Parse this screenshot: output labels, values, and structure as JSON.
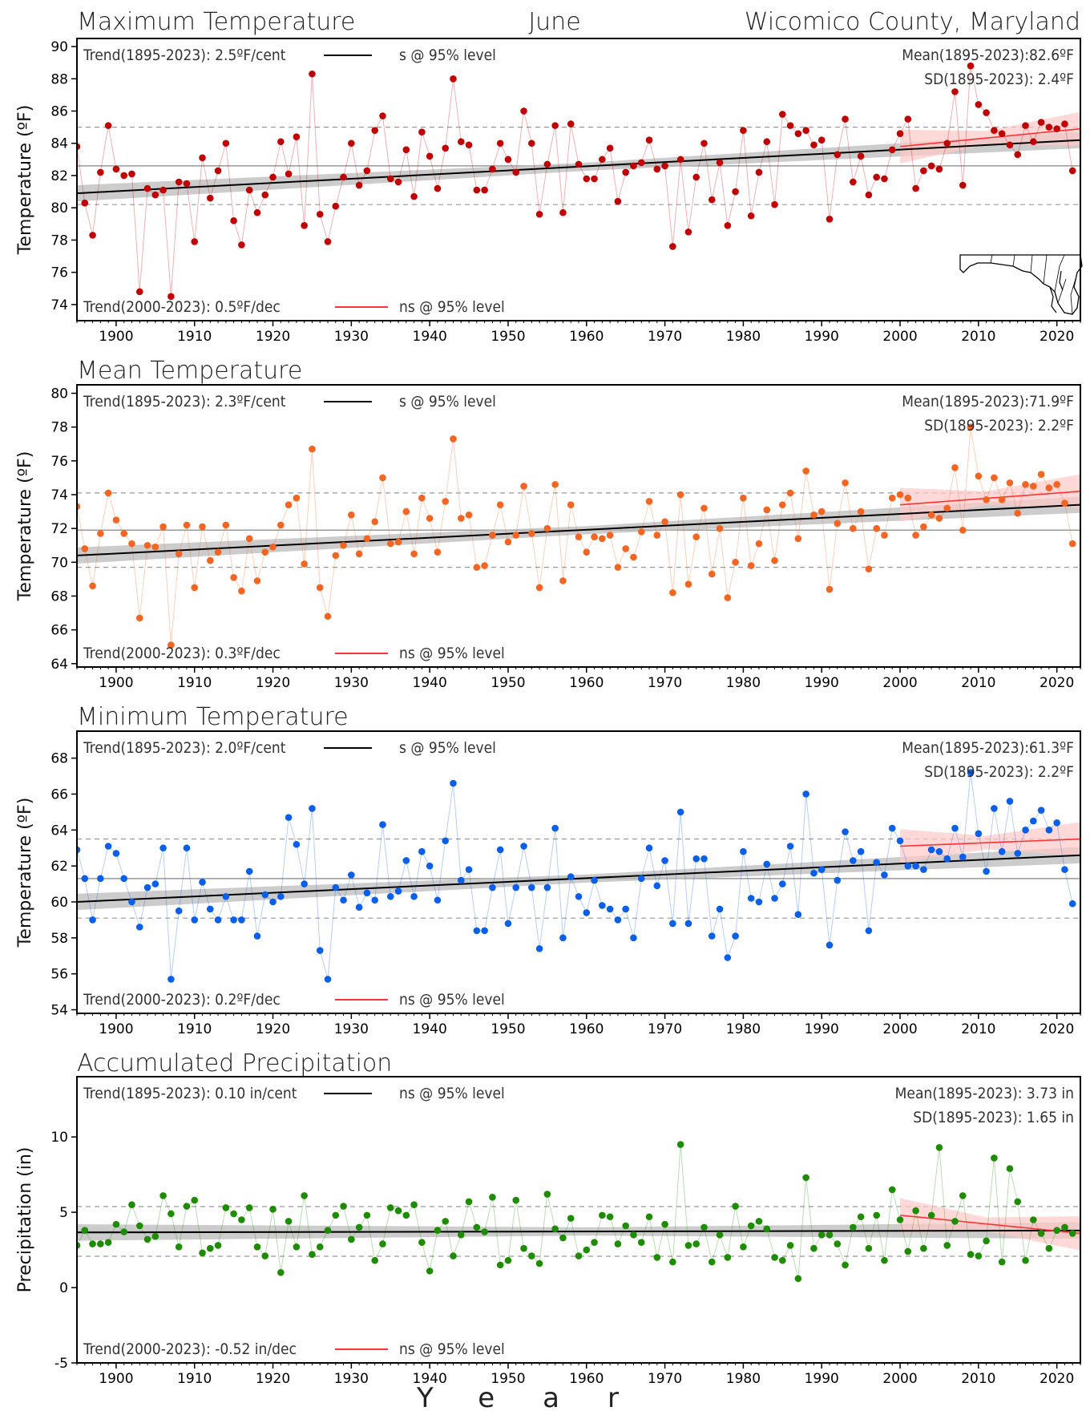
{
  "header": {
    "title_left": "Maximum Temperature",
    "title_center": "June",
    "title_right": "Wicomico County, Maryland"
  },
  "x_axis": {
    "label": "Year",
    "range": [
      1895,
      2023
    ],
    "ticks": [
      1900,
      1910,
      1920,
      1930,
      1940,
      1950,
      1960,
      1970,
      1980,
      1990,
      2000,
      2010,
      2020
    ]
  },
  "colors": {
    "max": "#c00000",
    "mean": "#f26522",
    "min": "#0a5fe8",
    "precip": "#1e8c00",
    "trend_line": "#000000",
    "recent_trend": "#ff3333",
    "band": "#bbbbbb",
    "recent_band": "#ffc8c8"
  },
  "chart_data": [
    {
      "type": "line",
      "title": "Maximum Temperature",
      "ylabel": "Temperature (ºF)",
      "ylim": [
        73,
        90.5
      ],
      "yticks": [
        74,
        76,
        78,
        80,
        82,
        84,
        86,
        88,
        90
      ],
      "trend_long_label": "Trend(1895-2023):  2.5ºF/cent",
      "trend_long_sig": "s @ 95% level",
      "trend_recent_label": "Trend(2000-2023):  0.5ºF/dec",
      "trend_recent_sig": "ns @ 95% level",
      "mean_label": "Mean(1895-2023):82.6ºF",
      "sd_label": "SD(1895-2023): 2.4ºF",
      "mean": 82.6,
      "sd": 2.4,
      "trend_long": {
        "y_start": 80.9,
        "y_end": 84.2
      },
      "trend_recent": {
        "y_start": 83.8,
        "y_end": 84.9
      },
      "start_year": 1895,
      "values": [
        83.8,
        80.3,
        78.3,
        82.2,
        85.1,
        82.4,
        82.0,
        82.1,
        74.8,
        81.2,
        80.8,
        81.1,
        74.5,
        81.6,
        81.5,
        77.9,
        83.1,
        80.6,
        82.3,
        84.0,
        79.2,
        77.7,
        81.1,
        79.7,
        80.8,
        81.9,
        84.1,
        82.1,
        84.4,
        78.9,
        88.3,
        79.6,
        77.9,
        80.1,
        81.9,
        84.0,
        81.4,
        82.3,
        84.8,
        85.7,
        81.8,
        81.6,
        83.6,
        80.7,
        84.7,
        83.2,
        81.2,
        83.7,
        88.0,
        84.1,
        83.9,
        81.1,
        81.1,
        82.4,
        84.0,
        83.0,
        82.2,
        86.0,
        84.0,
        79.6,
        82.7,
        85.1,
        79.7,
        85.2,
        82.7,
        81.8,
        81.8,
        83.0,
        83.7,
        80.4,
        82.2,
        82.6,
        82.8,
        84.2,
        82.4,
        82.6,
        77.6,
        83.0,
        78.5,
        81.9,
        84.0,
        80.5,
        82.8,
        78.9,
        81.0,
        84.8,
        79.5,
        82.2,
        84.1,
        80.2,
        85.8,
        85.1,
        84.6,
        84.8,
        83.9,
        84.2,
        79.3,
        83.3,
        85.5,
        81.6,
        83.2,
        80.8,
        81.9,
        81.8,
        83.6,
        84.6,
        85.5,
        81.2,
        82.3,
        82.6,
        82.4,
        84.0,
        87.2,
        81.4,
        88.8,
        86.4,
        85.9,
        84.8,
        84.6,
        83.9,
        83.3,
        85.1,
        84.1,
        85.3,
        85.0,
        84.9,
        85.2,
        82.3
      ]
    },
    {
      "type": "line",
      "title": "Mean Temperature",
      "ylabel": "Temperature (ºF)",
      "ylim": [
        63.8,
        80.5
      ],
      "yticks": [
        64,
        66,
        68,
        70,
        72,
        74,
        76,
        78,
        80
      ],
      "trend_long_label": "Trend(1895-2023):  2.3ºF/cent",
      "trend_long_sig": "s @ 95% level",
      "trend_recent_label": "Trend(2000-2023):  0.3ºF/dec",
      "trend_recent_sig": "ns @ 95% level",
      "mean_label": "Mean(1895-2023):71.9ºF",
      "sd_label": "SD(1895-2023): 2.2ºF",
      "mean": 71.9,
      "sd": 2.2,
      "trend_long": {
        "y_start": 70.4,
        "y_end": 73.4
      },
      "trend_recent": {
        "y_start": 73.4,
        "y_end": 74.2
      },
      "start_year": 1895,
      "values": [
        73.3,
        70.8,
        68.6,
        71.7,
        74.1,
        72.5,
        71.7,
        71.1,
        66.7,
        71.0,
        70.9,
        72.1,
        65.1,
        70.5,
        72.2,
        68.5,
        72.1,
        70.1,
        70.6,
        72.2,
        69.1,
        68.3,
        71.4,
        68.9,
        70.6,
        70.9,
        72.2,
        73.4,
        73.8,
        69.9,
        76.7,
        68.5,
        66.8,
        70.4,
        71.0,
        72.8,
        70.5,
        71.4,
        72.4,
        75.0,
        71.1,
        71.2,
        73.0,
        70.5,
        73.8,
        72.6,
        70.6,
        73.6,
        77.3,
        72.6,
        72.8,
        69.7,
        69.8,
        71.6,
        73.4,
        71.2,
        71.6,
        74.5,
        71.7,
        68.5,
        72.0,
        74.6,
        68.9,
        73.4,
        71.5,
        70.6,
        71.5,
        71.4,
        71.6,
        69.7,
        70.8,
        70.3,
        71.8,
        73.6,
        71.6,
        72.4,
        68.2,
        74.0,
        68.7,
        71.5,
        73.2,
        69.3,
        72.0,
        67.9,
        70.0,
        73.8,
        69.8,
        71.1,
        73.1,
        70.1,
        73.4,
        74.1,
        71.4,
        75.4,
        72.8,
        73.0,
        68.4,
        72.3,
        74.7,
        72.0,
        73.0,
        69.6,
        72.0,
        71.6,
        73.8,
        74.0,
        73.8,
        71.6,
        72.1,
        72.8,
        72.6,
        73.2,
        75.6,
        71.9,
        78.0,
        75.1,
        73.7,
        75.0,
        73.7,
        74.7,
        72.9,
        74.6,
        74.5,
        75.2,
        74.4,
        74.6,
        73.5,
        71.1
      ]
    },
    {
      "type": "line",
      "title": "Minimum Temperature",
      "ylabel": "Temperature (ºF)",
      "ylim": [
        53.8,
        69.5
      ],
      "yticks": [
        54,
        56,
        58,
        60,
        62,
        64,
        66,
        68
      ],
      "trend_long_label": "Trend(1895-2023):  2.0ºF/cent",
      "trend_long_sig": "s @ 95% level",
      "trend_recent_label": "Trend(2000-2023):  0.2ºF/dec",
      "trend_recent_sig": "ns @ 95% level",
      "mean_label": "Mean(1895-2023):61.3ºF",
      "sd_label": "SD(1895-2023): 2.2ºF",
      "mean": 61.3,
      "sd": 2.2,
      "trend_long": {
        "y_start": 60.0,
        "y_end": 62.6
      },
      "trend_recent": {
        "y_start": 63.1,
        "y_end": 63.5
      },
      "start_year": 1895,
      "values": [
        62.9,
        61.3,
        59.0,
        61.3,
        63.1,
        62.7,
        61.3,
        60.0,
        58.6,
        60.8,
        61.0,
        63.0,
        55.7,
        59.5,
        63.0,
        59.0,
        61.1,
        59.6,
        59.0,
        60.3,
        59.0,
        59.0,
        61.7,
        58.1,
        60.4,
        60.0,
        60.3,
        64.7,
        63.2,
        61.0,
        65.2,
        57.3,
        55.7,
        60.8,
        60.1,
        61.5,
        59.7,
        60.5,
        60.1,
        64.3,
        60.3,
        60.6,
        62.3,
        60.3,
        62.8,
        62.0,
        60.1,
        63.4,
        66.6,
        61.2,
        61.8,
        58.4,
        58.4,
        60.8,
        62.9,
        58.8,
        60.8,
        63.1,
        60.8,
        57.4,
        60.8,
        64.1,
        58.0,
        61.4,
        60.3,
        59.4,
        61.2,
        59.8,
        59.6,
        59.0,
        59.6,
        58.0,
        61.3,
        63.0,
        60.9,
        62.3,
        58.8,
        65.0,
        58.8,
        62.4,
        62.4,
        58.1,
        59.6,
        56.9,
        58.1,
        62.8,
        60.2,
        60.0,
        62.1,
        60.2,
        61.0,
        63.1,
        59.3,
        66.0,
        61.6,
        61.8,
        57.6,
        61.2,
        63.9,
        62.3,
        62.8,
        58.4,
        62.2,
        61.5,
        64.1,
        63.4,
        62.0,
        62.0,
        61.8,
        62.9,
        62.8,
        62.4,
        64.1,
        62.5,
        67.2,
        63.8,
        61.7,
        65.2,
        62.8,
        65.6,
        62.7,
        64.0,
        64.5,
        65.1,
        64.0,
        64.4,
        61.8,
        59.9
      ]
    },
    {
      "type": "line",
      "title": "Accumulated Precipitation",
      "ylabel": "Precipitation (in)",
      "ylim": [
        -5,
        14
      ],
      "yticks": [
        -5,
        0,
        5,
        10
      ],
      "trend_long_label": "Trend(1895-2023):  0.10 in/cent",
      "trend_long_sig": "ns @ 95% level",
      "trend_recent_label": "Trend(2000-2023):  -0.52 in/dec",
      "trend_recent_sig": "ns @ 95% level",
      "mean_label": "Mean(1895-2023): 3.73 in",
      "sd_label": "SD(1895-2023): 1.65 in",
      "mean": 3.73,
      "sd": 1.65,
      "trend_long": {
        "y_start": 3.66,
        "y_end": 3.79
      },
      "trend_recent": {
        "y_start": 4.8,
        "y_end": 3.6
      },
      "start_year": 1895,
      "values": [
        2.8,
        3.8,
        2.9,
        2.9,
        3.0,
        4.2,
        3.7,
        5.5,
        4.1,
        3.2,
        3.4,
        6.1,
        4.9,
        2.7,
        5.4,
        5.8,
        2.3,
        2.6,
        2.8,
        5.3,
        4.9,
        4.5,
        5.3,
        2.7,
        2.1,
        5.2,
        1.0,
        4.4,
        2.7,
        6.1,
        2.2,
        2.7,
        3.8,
        4.8,
        5.4,
        3.2,
        4.0,
        4.8,
        1.8,
        2.9,
        5.3,
        5.1,
        4.8,
        5.5,
        3.0,
        1.1,
        3.8,
        4.4,
        2.1,
        3.5,
        5.7,
        4.0,
        3.7,
        6.0,
        1.5,
        1.8,
        5.8,
        2.6,
        2.1,
        1.6,
        6.2,
        3.9,
        3.3,
        4.6,
        2.1,
        2.5,
        3.0,
        4.8,
        4.7,
        2.9,
        4.1,
        3.5,
        3.0,
        4.7,
        2.0,
        4.2,
        1.7,
        9.5,
        2.8,
        2.9,
        4.0,
        1.7,
        3.5,
        2.0,
        5.4,
        2.7,
        4.1,
        4.4,
        3.9,
        2.0,
        1.8,
        2.8,
        0.6,
        7.3,
        2.6,
        3.5,
        3.5,
        2.9,
        1.5,
        4.0,
        4.7,
        2.6,
        4.8,
        1.8,
        6.5,
        4.5,
        2.4,
        5.1,
        2.6,
        4.8,
        9.3,
        2.8,
        4.4,
        6.1,
        2.2,
        2.1,
        3.1,
        8.6,
        1.7,
        7.9,
        5.7,
        1.8,
        4.5,
        3.6,
        2.6,
        3.8,
        4.0,
        3.6
      ]
    }
  ]
}
